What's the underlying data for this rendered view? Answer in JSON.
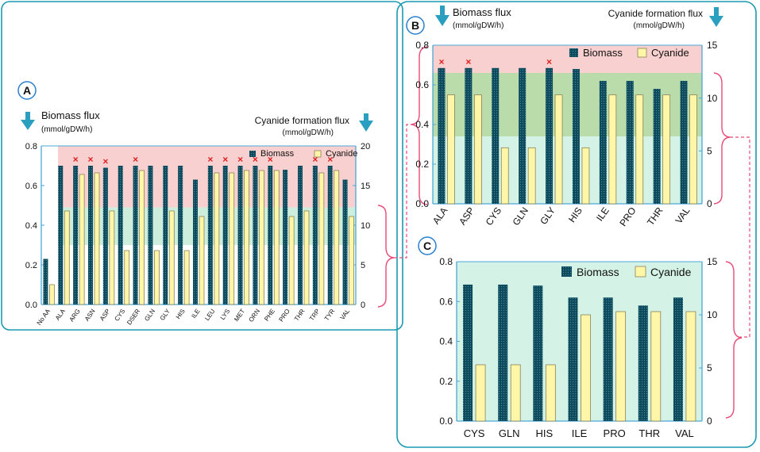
{
  "colors": {
    "frame": "#1a9ab0",
    "axis": "#4aa7d8",
    "arrow": "#2a9fc0",
    "biomass": "#0e4a5c",
    "biomass_dot": "#3d8fa3",
    "cyanide": "#fff6a8",
    "cyanide_edge": "#8a8256",
    "band_red": "#f9d0d0",
    "band_green": "#cdeedd",
    "band_dark_green": "#b9dcaa",
    "band_light_green": "#d4f3e6",
    "marker": "#e02020",
    "brace": "#e84a78",
    "label_circle": "#2a7fcf"
  },
  "labels": {
    "biomass_flux": "Biomass flux",
    "cyanide_flux": "Cyanide formation flux",
    "units": "(mmol/gDW/h)"
  },
  "chart_data": [
    {
      "id": "A",
      "type": "bar",
      "panel_label": "A",
      "categories": [
        "No AA",
        "ALA",
        "ARG",
        "ASN",
        "ASP",
        "CYS",
        "DSER",
        "GLN",
        "GLY",
        "HIS",
        "ILE",
        "LEU",
        "LYS",
        "MET",
        "ORN",
        "PHE",
        "PRO",
        "THR",
        "TRP",
        "TYR",
        "VAL"
      ],
      "series": [
        {
          "name": "Biomass",
          "axis": "left",
          "values": [
            0.23,
            0.7,
            0.7,
            0.7,
            0.69,
            0.7,
            0.7,
            0.7,
            0.7,
            0.7,
            0.63,
            0.7,
            0.7,
            0.7,
            0.7,
            0.7,
            0.68,
            0.7,
            0.7,
            0.7,
            0.63
          ]
        },
        {
          "name": "Cyanide",
          "axis": "right",
          "values": [
            2.5,
            11.8,
            16.4,
            16.6,
            11.8,
            6.8,
            16.9,
            6.8,
            11.8,
            6.8,
            11.1,
            16.6,
            16.6,
            16.9,
            16.9,
            16.9,
            11.1,
            11.8,
            16.6,
            16.9,
            11.1
          ]
        }
      ],
      "essential_marked": [
        "ARG",
        "ASN",
        "ASP",
        "DSER",
        "LEU",
        "LYS",
        "MET",
        "ORN",
        "PHE",
        "TRP",
        "TYR"
      ],
      "ylim_left": [
        0,
        0.8
      ],
      "ylim_right": [
        0,
        20
      ],
      "yticks_left": [
        "0.0",
        "0.2",
        "0.4",
        "0.6",
        "0.8"
      ],
      "yticks_right": [
        "0",
        "5",
        "10",
        "15",
        "20"
      ],
      "bands_left": [
        {
          "range": [
            0.49,
            0.8
          ],
          "color": "band_red"
        },
        {
          "range": [
            0.3,
            0.49
          ],
          "color": "band_green"
        }
      ],
      "legend": [
        "Biomass",
        "Cyanide"
      ]
    },
    {
      "id": "B",
      "type": "bar",
      "panel_label": "B",
      "categories": [
        "ALA",
        "ASP",
        "CYS",
        "GLN",
        "GLY",
        "HIS",
        "ILE",
        "PRO",
        "THR",
        "VAL"
      ],
      "series": [
        {
          "name": "Biomass",
          "axis": "left",
          "values": [
            0.685,
            0.685,
            0.685,
            0.685,
            0.685,
            0.68,
            0.62,
            0.62,
            0.58,
            0.62
          ]
        },
        {
          "name": "Cyanide",
          "axis": "right",
          "values": [
            10.3,
            10.3,
            5.3,
            5.3,
            10.3,
            5.3,
            10.3,
            10.3,
            10.3,
            10.3
          ]
        }
      ],
      "essential_marked": [
        "ALA",
        "ASP",
        "GLY"
      ],
      "ylim_left": [
        0,
        0.8
      ],
      "ylim_right": [
        0,
        15
      ],
      "yticks_left": [
        "0.0",
        "0.2",
        "0.4",
        "0.6",
        "0.8"
      ],
      "yticks_right": [
        "0",
        "5",
        "10",
        "15"
      ],
      "bands_left": [
        {
          "range": [
            0.66,
            0.8
          ],
          "color": "band_red"
        },
        {
          "range": [
            0.34,
            0.66
          ],
          "color": "band_dark_green"
        },
        {
          "range": [
            0,
            0.34
          ],
          "color": "band_light_green"
        }
      ],
      "legend": [
        "Biomass",
        "Cyanide"
      ]
    },
    {
      "id": "C",
      "type": "bar",
      "panel_label": "C",
      "categories": [
        "CYS",
        "GLN",
        "HIS",
        "ILE",
        "PRO",
        "THR",
        "VAL"
      ],
      "series": [
        {
          "name": "Biomass",
          "axis": "left",
          "values": [
            0.685,
            0.685,
            0.68,
            0.62,
            0.62,
            0.58,
            0.62
          ]
        },
        {
          "name": "Cyanide",
          "axis": "right",
          "values": [
            5.3,
            5.3,
            5.3,
            10.0,
            10.3,
            10.3,
            10.3
          ]
        }
      ],
      "essential_marked": [],
      "ylim_left": [
        0,
        0.8
      ],
      "ylim_right": [
        0,
        15
      ],
      "yticks_left": [
        "0.0",
        "0.2",
        "0.4",
        "0.6",
        "0.8"
      ],
      "yticks_right": [
        "0",
        "5",
        "10",
        "15"
      ],
      "bands_left": [
        {
          "range": [
            0,
            0.8
          ],
          "color": "band_light_green"
        }
      ],
      "legend": [
        "Biomass",
        "Cyanide"
      ]
    }
  ]
}
